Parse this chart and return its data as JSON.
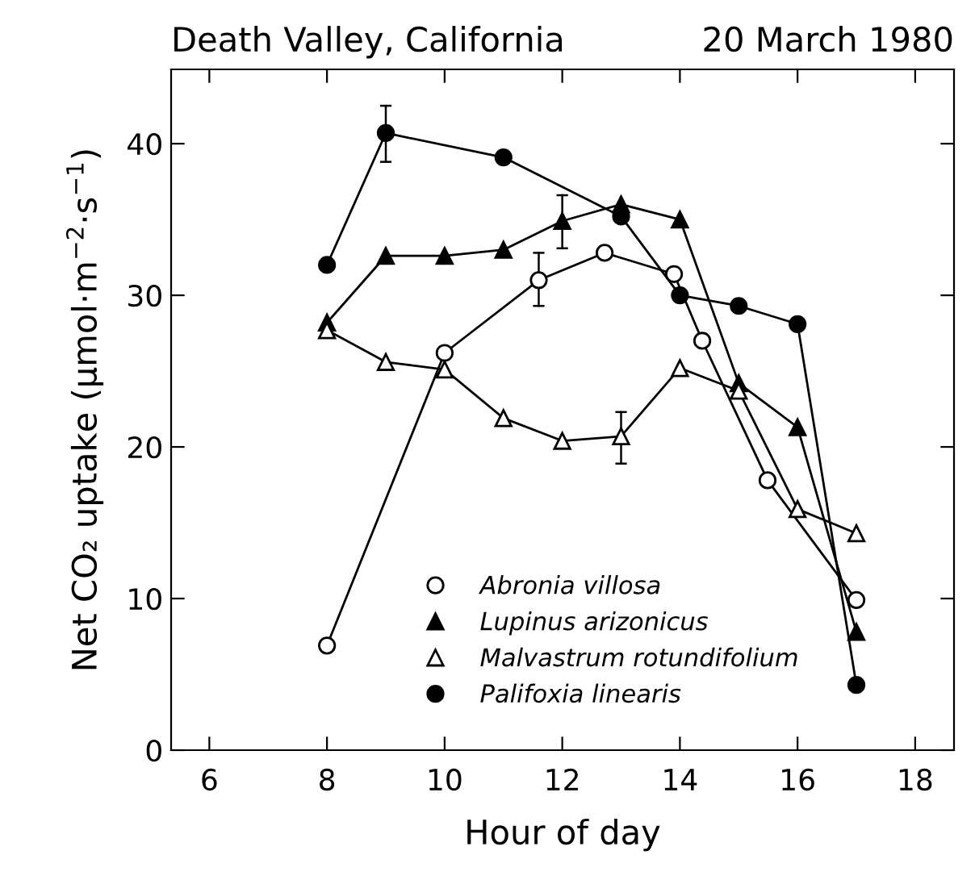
{
  "chart_data": {
    "type": "line",
    "title": "Death Valley, California",
    "subtitle": "20 March 1980",
    "xlabel": "Hour of day",
    "ylabel": "Net CO₂ uptake (μmol·m$^{−2}$·s$^{−1}$)",
    "xlim": [
      5.35,
      18.66
    ],
    "xticks": [
      6,
      8,
      10,
      12,
      14,
      16,
      18
    ],
    "ylim": [
      0,
      44.9
    ],
    "yticks": [
      0,
      10,
      20,
      30,
      40
    ],
    "grid": false,
    "legend": "bottom right",
    "line_style": "solid",
    "series": [
      {
        "name": "Abronia villosa",
        "color": "#000000",
        "marker": "circle-open",
        "x": [
          8,
          10,
          11.6,
          12.72,
          13.9,
          14.38,
          15.49,
          17
        ],
        "values": [
          6.9,
          26.2,
          31.0,
          32.8,
          31.4,
          27.0,
          17.8,
          9.9
        ],
        "errors": [
          null,
          null,
          [
            29.3,
            32.8
          ],
          null,
          null,
          null,
          null,
          null
        ]
      },
      {
        "name": "Lupinus arizonicus",
        "color": "#000000",
        "marker": "triangle",
        "x": [
          8,
          9,
          10,
          11,
          12,
          13,
          14,
          15,
          16,
          17
        ],
        "values": [
          28.2,
          32.6,
          32.6,
          33.0,
          34.9,
          36.0,
          35.0,
          24.2,
          21.3,
          7.8
        ],
        "errors": [
          null,
          null,
          null,
          null,
          [
            33.1,
            36.6
          ],
          null,
          null,
          null,
          null,
          null
        ]
      },
      {
        "name": "Malvastrum rotundifolium",
        "color": "#000000",
        "marker": "triangle-open",
        "x": [
          8,
          9,
          10,
          11,
          12,
          13,
          14,
          15,
          16,
          17
        ],
        "values": [
          27.7,
          25.6,
          25.1,
          21.9,
          20.4,
          20.7,
          25.2,
          23.7,
          15.9,
          14.3
        ],
        "errors": [
          null,
          null,
          null,
          null,
          null,
          [
            18.9,
            22.3
          ],
          null,
          null,
          null,
          null
        ]
      },
      {
        "name": "Palifoxia linearis",
        "color": "#000000",
        "marker": "circle",
        "x": [
          8,
          9,
          11,
          13,
          14,
          15,
          16,
          17
        ],
        "values": [
          32.0,
          40.7,
          39.1,
          35.2,
          30.0,
          29.3,
          28.1,
          4.3
        ],
        "errors": [
          null,
          [
            38.8,
            42.5
          ],
          null,
          null,
          null,
          null,
          null,
          null
        ]
      }
    ]
  }
}
